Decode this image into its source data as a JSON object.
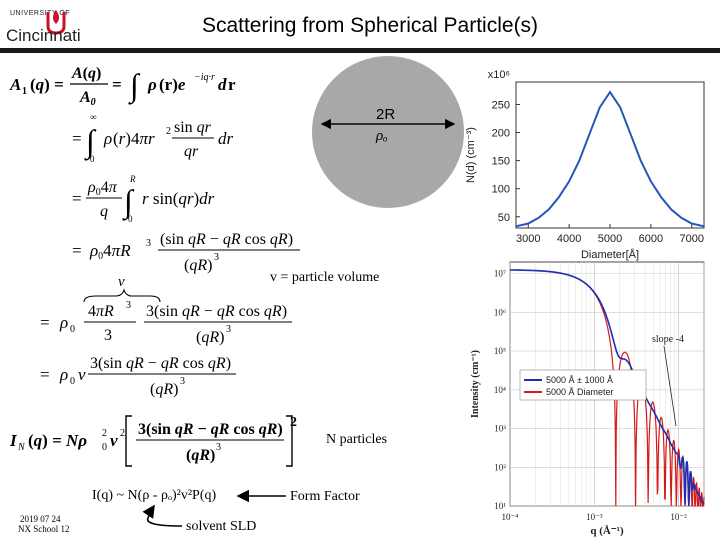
{
  "header": {
    "logo_top": "UNIVERSITY OF",
    "logo_word": "Cincinnati",
    "title": "Scattering from Spherical Particle(s)"
  },
  "sphere": {
    "diameter_label": "2R",
    "density_label": "ρₒ"
  },
  "equations": {
    "lhs1": "A(q)",
    "rhs1": "A(q) / A₀ = ∫ ρ(r) e^(−iq·r) dr",
    "line2": "= ∫₀^∞ ρ(r) 4πr² (sin qr / qr) dr",
    "line3": "= (ρ₀ 4π / q) ∫₀^R r sin(qr) dr",
    "line4": "= ρ₀ 4πR³ (sin qR − qR cos qR) / (qR)³",
    "line5": "= ρ₀ (4πR³/3) · 3(sin qR − qR cos qR) / (qR)³",
    "line6": "= ρ₀ v · 3(sin qR − qR cos qR) / (qR)³",
    "line7": "I_N(q) = Nρ₀² v² [3(sin qR − qR cos qR) / (qR)³]²",
    "v_label": "v"
  },
  "annotations": {
    "particle_volume": "v = particle volume",
    "n_particles": "N particles",
    "final_relation": "I(q) ~ N(ρ - ρₒ)²v²P(q)",
    "form_factor": "Form Factor",
    "solvent_sld": "solvent SLD"
  },
  "footer": {
    "date": "2019 07 24",
    "school": "NX School 12"
  },
  "chart_data": [
    {
      "type": "line",
      "title": "",
      "xlabel": "Diameter[Å]",
      "ylabel": "N(d) (cm⁻³)",
      "y_multiplier": "x10⁶",
      "x_ticks": [
        3000,
        4000,
        5000,
        6000,
        7000
      ],
      "y_ticks": [
        50,
        100,
        150,
        200,
        250
      ],
      "xlim": [
        2700,
        7300
      ],
      "ylim": [
        30,
        290
      ],
      "color": "#2457b8",
      "series": [
        {
          "x": [
            2700,
            3000,
            3250,
            3500,
            3750,
            4000,
            4250,
            4500,
            4750,
            5000,
            5250,
            5500,
            5750,
            6000,
            6250,
            6500,
            6750,
            7000,
            7300
          ],
          "values": [
            33,
            38,
            48,
            63,
            85,
            113,
            150,
            198,
            245,
            272,
            245,
            198,
            150,
            113,
            85,
            63,
            48,
            38,
            33
          ]
        }
      ]
    },
    {
      "type": "line",
      "title": "",
      "xlabel": "q (Å⁻¹)",
      "ylabel": "Intensity (cm⁻¹)",
      "log_x": true,
      "log_y": true,
      "x_ticks": [
        "10⁻⁴",
        "10⁻³",
        "10⁻²"
      ],
      "y_ticks": [
        "10¹",
        "10²",
        "10³",
        "10⁴",
        "10⁵",
        "10⁶",
        "10⁷"
      ],
      "annotation": "slope -4",
      "legend": [
        "5000 Å ± 1000 Å",
        "5000 Å Diameter"
      ],
      "legend_position": "bottom-left",
      "series": [
        {
          "name": "5000 Å ± 1000 Å",
          "color": "#1c2fb5"
        },
        {
          "name": "5000 Å Diameter",
          "color": "#d41a1a"
        }
      ]
    }
  ]
}
